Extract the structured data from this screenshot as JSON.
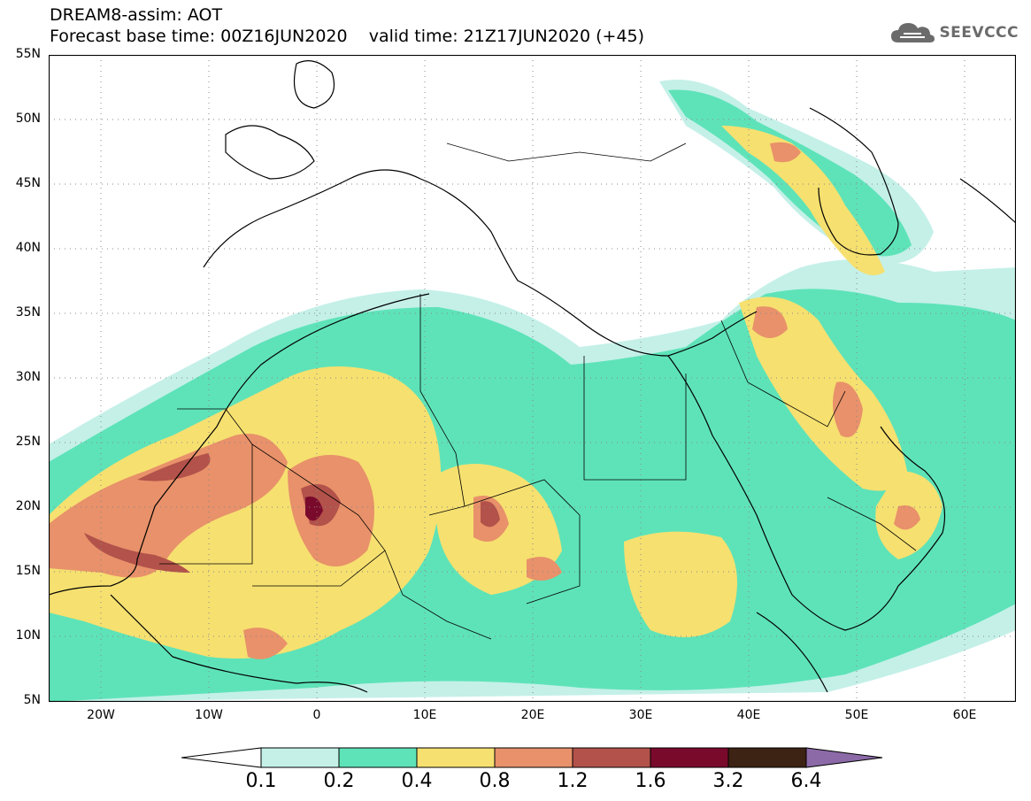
{
  "header": {
    "line1": "DREAM8-assim: AOT",
    "line2": "Forecast base time: 00Z16JUN2020    valid time: 21Z17JUN2020 (+45)"
  },
  "logo": {
    "icon": "cloud-icon",
    "text": "SEEVCCC"
  },
  "map": {
    "lat_labels": [
      "55N",
      "50N",
      "45N",
      "40N",
      "35N",
      "30N",
      "25N",
      "20N",
      "15N",
      "10N",
      "5N"
    ],
    "lon_labels": [
      "20W",
      "10W",
      "0",
      "10E",
      "20E",
      "30E",
      "40E",
      "50E",
      "60E"
    ],
    "grid": "dotted",
    "colors": {
      "c1": "#c4f0e8",
      "c2": "#5ee3b8",
      "c3": "#f6e070",
      "c4": "#e8916a",
      "c5": "#b2524a",
      "c6": "#7a0a2c",
      "c7": "#3d2314",
      "c8": "#8c6aa8"
    }
  },
  "colorbar": {
    "labels": [
      "0.1",
      "0.2",
      "0.4",
      "0.8",
      "1.2",
      "1.6",
      "3.2",
      "6.4"
    ],
    "colors": [
      "#c4f0e8",
      "#5ee3b8",
      "#f6e070",
      "#e8916a",
      "#b2524a",
      "#7a0a2c",
      "#3d2314"
    ],
    "end_colors": {
      "low": "#ffffff",
      "high": "#8c6aa8"
    }
  }
}
